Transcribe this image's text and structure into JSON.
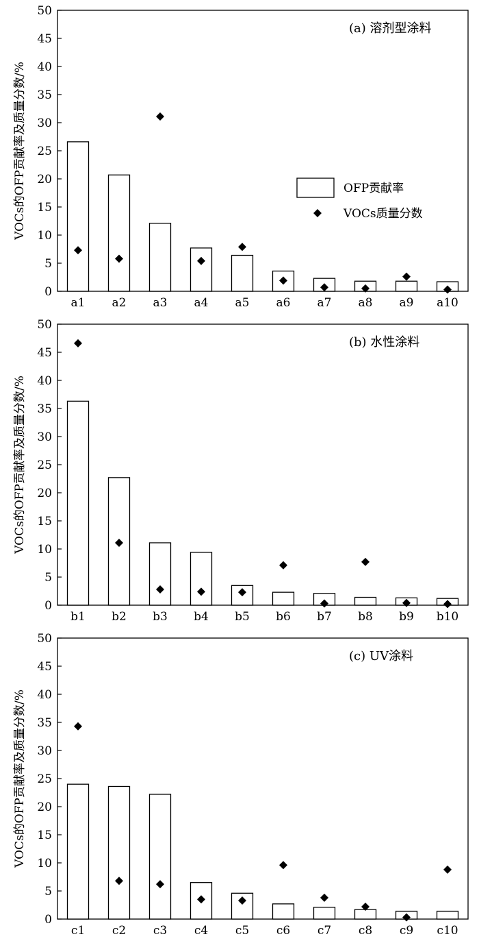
{
  "chart_data": [
    {
      "type": "bar",
      "title": "(a) 溶剂型涂料",
      "ylabel": "VOCs的OFP贡献率及质量分数/%",
      "ylim": [
        0,
        50
      ],
      "yticks": [
        0,
        5,
        10,
        15,
        20,
        25,
        30,
        35,
        40,
        45,
        50
      ],
      "categories": [
        "a1",
        "a2",
        "a3",
        "a4",
        "a5",
        "a6",
        "a7",
        "a8",
        "a9",
        "a10"
      ],
      "series": [
        {
          "name": "OFP贡献率",
          "type": "bar",
          "values": [
            26.6,
            20.7,
            12.1,
            7.7,
            6.4,
            3.6,
            2.3,
            1.8,
            1.8,
            1.7
          ]
        },
        {
          "name": "VOCs质量分数",
          "type": "scatter",
          "values": [
            7.3,
            5.8,
            31.1,
            5.4,
            7.9,
            1.9,
            0.7,
            0.5,
            2.6,
            0.3
          ]
        }
      ],
      "legend": {
        "position": "center-right",
        "labels": [
          "OFP贡献率",
          "VOCs质量分数"
        ]
      }
    },
    {
      "type": "bar",
      "title": "(b) 水性涂料",
      "ylabel": "VOCs的OFP贡献率及质量分数/%",
      "ylim": [
        0,
        50
      ],
      "yticks": [
        0,
        5,
        10,
        15,
        20,
        25,
        30,
        35,
        40,
        45,
        50
      ],
      "categories": [
        "b1",
        "b2",
        "b3",
        "b4",
        "b5",
        "b6",
        "b7",
        "b8",
        "b9",
        "b10"
      ],
      "series": [
        {
          "name": "OFP贡献率",
          "type": "bar",
          "values": [
            36.3,
            22.7,
            11.1,
            9.4,
            3.5,
            2.3,
            2.1,
            1.4,
            1.3,
            1.2
          ]
        },
        {
          "name": "VOCs质量分数",
          "type": "scatter",
          "values": [
            46.6,
            11.1,
            2.8,
            2.4,
            2.3,
            7.1,
            0.3,
            7.7,
            0.4,
            0.2
          ]
        }
      ]
    },
    {
      "type": "bar",
      "title": "(c) UV涂料",
      "ylabel": "VOCs的OFP贡献率及质量分数/%",
      "ylim": [
        0,
        50
      ],
      "yticks": [
        0,
        5,
        10,
        15,
        20,
        25,
        30,
        35,
        40,
        45,
        50
      ],
      "categories": [
        "c1",
        "c2",
        "c3",
        "c4",
        "c5",
        "c6",
        "c7",
        "c8",
        "c9",
        "c10"
      ],
      "series": [
        {
          "name": "OFP贡献率",
          "type": "bar",
          "values": [
            24.0,
            23.6,
            22.2,
            6.5,
            4.6,
            2.7,
            2.1,
            1.7,
            1.4,
            1.4
          ]
        },
        {
          "name": "VOCs质量分数",
          "type": "scatter",
          "values": [
            34.3,
            6.8,
            6.2,
            3.5,
            3.3,
            9.6,
            3.8,
            2.2,
            0.3,
            8.8
          ]
        }
      ]
    }
  ]
}
